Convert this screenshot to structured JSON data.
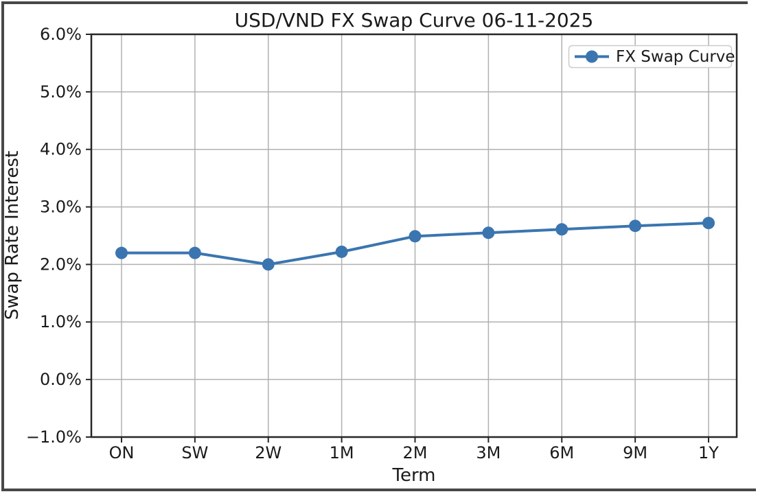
{
  "chart_data": {
    "type": "line",
    "title": "USD/VND FX Swap Curve 06-11-2025",
    "xlabel": "Term",
    "ylabel": "Swap Rate Interest",
    "categories": [
      "ON",
      "SW",
      "2W",
      "1M",
      "2M",
      "3M",
      "6M",
      "9M",
      "1Y"
    ],
    "series": [
      {
        "name": "FX Swap Curve",
        "values": [
          2.2,
          2.2,
          2.0,
          2.22,
          2.49,
          2.55,
          2.61,
          2.67,
          2.72
        ],
        "color": "#3a75b0",
        "marker": "circle"
      }
    ],
    "ylim": [
      -1.0,
      6.0
    ],
    "yticks": [
      6.0,
      5.0,
      4.0,
      3.0,
      2.0,
      1.0,
      0.0,
      -1.0
    ],
    "ytick_labels": [
      "6.0%",
      "5.0%",
      "4.0%",
      "3.0%",
      "2.0%",
      "1.0%",
      "0.0%",
      "−1.0%"
    ],
    "grid": true,
    "legend_position": "upper right",
    "colors": {
      "grid": "#b0b0b0",
      "spine": "#262626",
      "text": "#1a1a1a",
      "frame_border": "#474747",
      "legend_border": "#cccccc",
      "background": "#ffffff"
    }
  }
}
